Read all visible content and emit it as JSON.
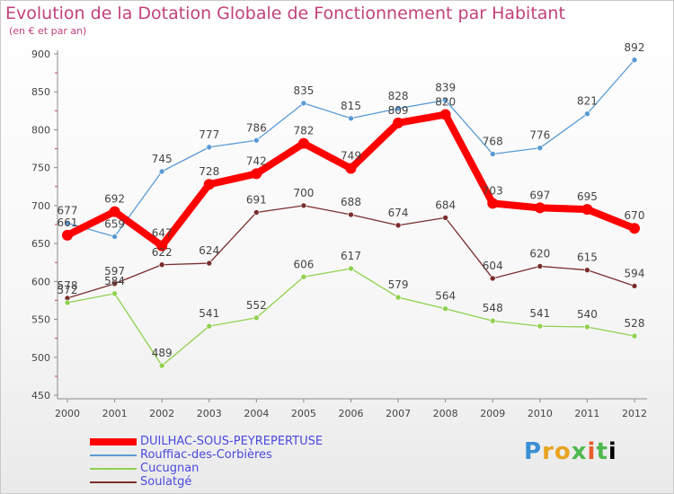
{
  "chart_data": {
    "type": "line",
    "title": "Evolution de la Dotation Globale de Fonctionnement par Habitant",
    "subtitle": "(en € et par an)",
    "x": [
      "2000",
      "2001",
      "2002",
      "2003",
      "2004",
      "2005",
      "2006",
      "2007",
      "2008",
      "2009",
      "2010",
      "2011",
      "2012"
    ],
    "ylim": [
      450,
      900
    ],
    "yticks": [
      450,
      500,
      550,
      600,
      650,
      700,
      750,
      800,
      850,
      900
    ],
    "grid": false,
    "legend_placement": "bottom-left",
    "series": [
      {
        "name": "DUILHAC-SOUS-PEYREPERTUSE",
        "color": "#ff0000",
        "values": [
          661,
          692,
          647,
          728,
          742,
          782,
          749,
          809,
          820,
          703,
          697,
          695,
          670
        ],
        "labels": [
          "661",
          "692",
          "647",
          "728",
          "742",
          "782",
          "749",
          "809",
          "820",
          "703",
          "697",
          "695",
          "670"
        ]
      },
      {
        "name": "Rouffiac-des-Corbières",
        "color": "#5b9bd5",
        "values": [
          677,
          659,
          745,
          777,
          786,
          835,
          815,
          828,
          839,
          768,
          776,
          821,
          892
        ],
        "labels": [
          "677",
          "659",
          "745",
          "777",
          "786",
          "835",
          "815",
          "828",
          "839",
          "768",
          "776",
          "821",
          "892"
        ]
      },
      {
        "name": "Cucugnan",
        "color": "#8fd14f",
        "values": [
          572,
          584,
          489,
          541,
          552,
          606,
          617,
          579,
          564,
          548,
          541,
          540,
          528
        ],
        "labels": [
          "572",
          "584",
          "489",
          "541",
          "552",
          "606",
          "617",
          "579",
          "564",
          "548",
          "541",
          "540",
          "528"
        ]
      },
      {
        "name": "Soulatgé",
        "color": "#7a2e2e",
        "values": [
          578,
          597,
          622,
          624,
          691,
          700,
          688,
          674,
          684,
          604,
          620,
          615,
          594
        ],
        "labels": [
          "578",
          "597",
          "622",
          "624",
          "691",
          "700",
          "688",
          "674",
          "684",
          "604",
          "620",
          "615",
          "594"
        ]
      }
    ]
  },
  "legend_label_color": "#4a4adf",
  "logo": {
    "letters": [
      "P",
      "r",
      "o",
      "x",
      "i",
      "t",
      "i"
    ]
  }
}
